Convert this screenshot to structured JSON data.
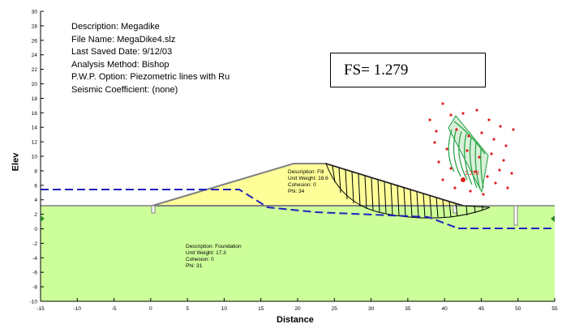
{
  "info": {
    "description": "Description:  Megadike",
    "file_name": "File Name:  MegaDike4.slz",
    "last_saved": "Last Saved Date:  9/12/03",
    "analysis_method": "Analysis Method:  Bishop",
    "pwp_option": "P.W.P. Option:  Piezometric lines with Ru",
    "seismic": "Seismic Coefficient:  (none)"
  },
  "fs_label": "FS= 1.279",
  "axes": {
    "x_title": "Distance",
    "y_title": "Elev",
    "x_ticks": [
      "-15",
      "-10",
      "-5",
      "0",
      "5",
      "10",
      "15",
      "20",
      "25",
      "30",
      "35",
      "40",
      "45",
      "50",
      "55"
    ],
    "y_ticks": [
      "30",
      "28",
      "26",
      "24",
      "22",
      "20",
      "18",
      "16",
      "14",
      "12",
      "10",
      "8",
      "6",
      "4",
      "2",
      "0",
      "-2",
      "-4",
      "-6",
      "-8",
      "-10"
    ]
  },
  "fill_material": {
    "description": "Description: Fill",
    "unit_weight": "Unit Weight: 18.6",
    "cohesion": "Cohesion: 0",
    "phi": "Phi: 34"
  },
  "foundation_material": {
    "description": "Description: Foundation",
    "unit_weight": "Unit Weight: 17.3",
    "cohesion": "Cohesion: 0",
    "phi": "Phi: 31"
  },
  "grid_label": "1.279",
  "colors": {
    "fill": "#ffff99",
    "foundation": "#ccff99",
    "water": "#2020c0",
    "center_dots": "#e02020",
    "contours": "#20a040"
  }
}
